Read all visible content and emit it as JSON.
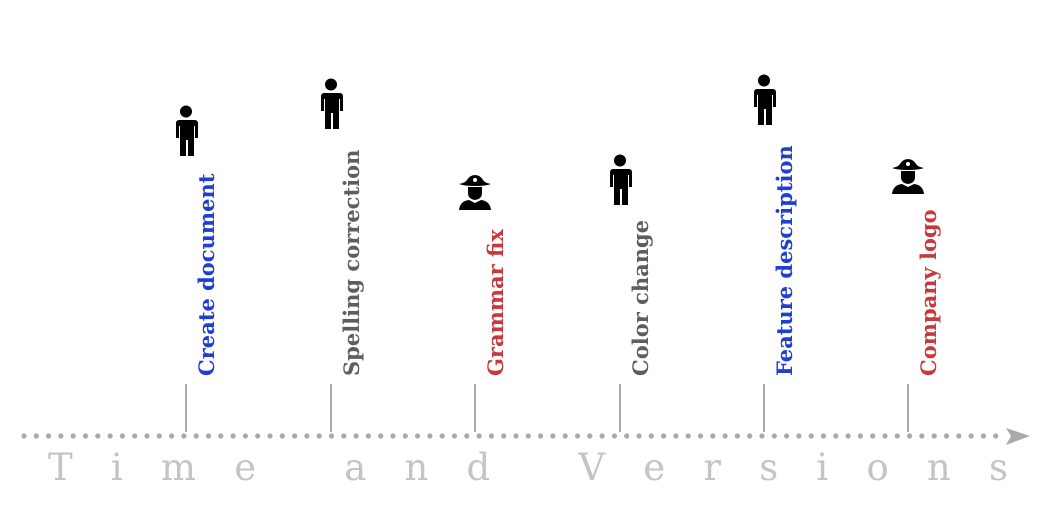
{
  "diagram": {
    "axis_title": "Time and Versions",
    "colors": {
      "blue": "#1f3fd1",
      "gray": "#5e5e5e",
      "red": "#c8393f",
      "tick": "#a9a9a9",
      "axis": "#a9a9a9",
      "title": "#c4c4c4"
    },
    "events": [
      {
        "label": "Create document",
        "color": "blue",
        "icon": "person-icon"
      },
      {
        "label": "Spelling correction",
        "color": "gray",
        "icon": "person-icon"
      },
      {
        "label": "Grammar fix",
        "color": "red",
        "icon": "pirate-icon"
      },
      {
        "label": "Color change",
        "color": "gray",
        "icon": "person-icon"
      },
      {
        "label": "Feature description",
        "color": "blue",
        "icon": "person-icon"
      },
      {
        "label": "Company logo",
        "color": "red",
        "icon": "pirate-icon"
      }
    ]
  }
}
